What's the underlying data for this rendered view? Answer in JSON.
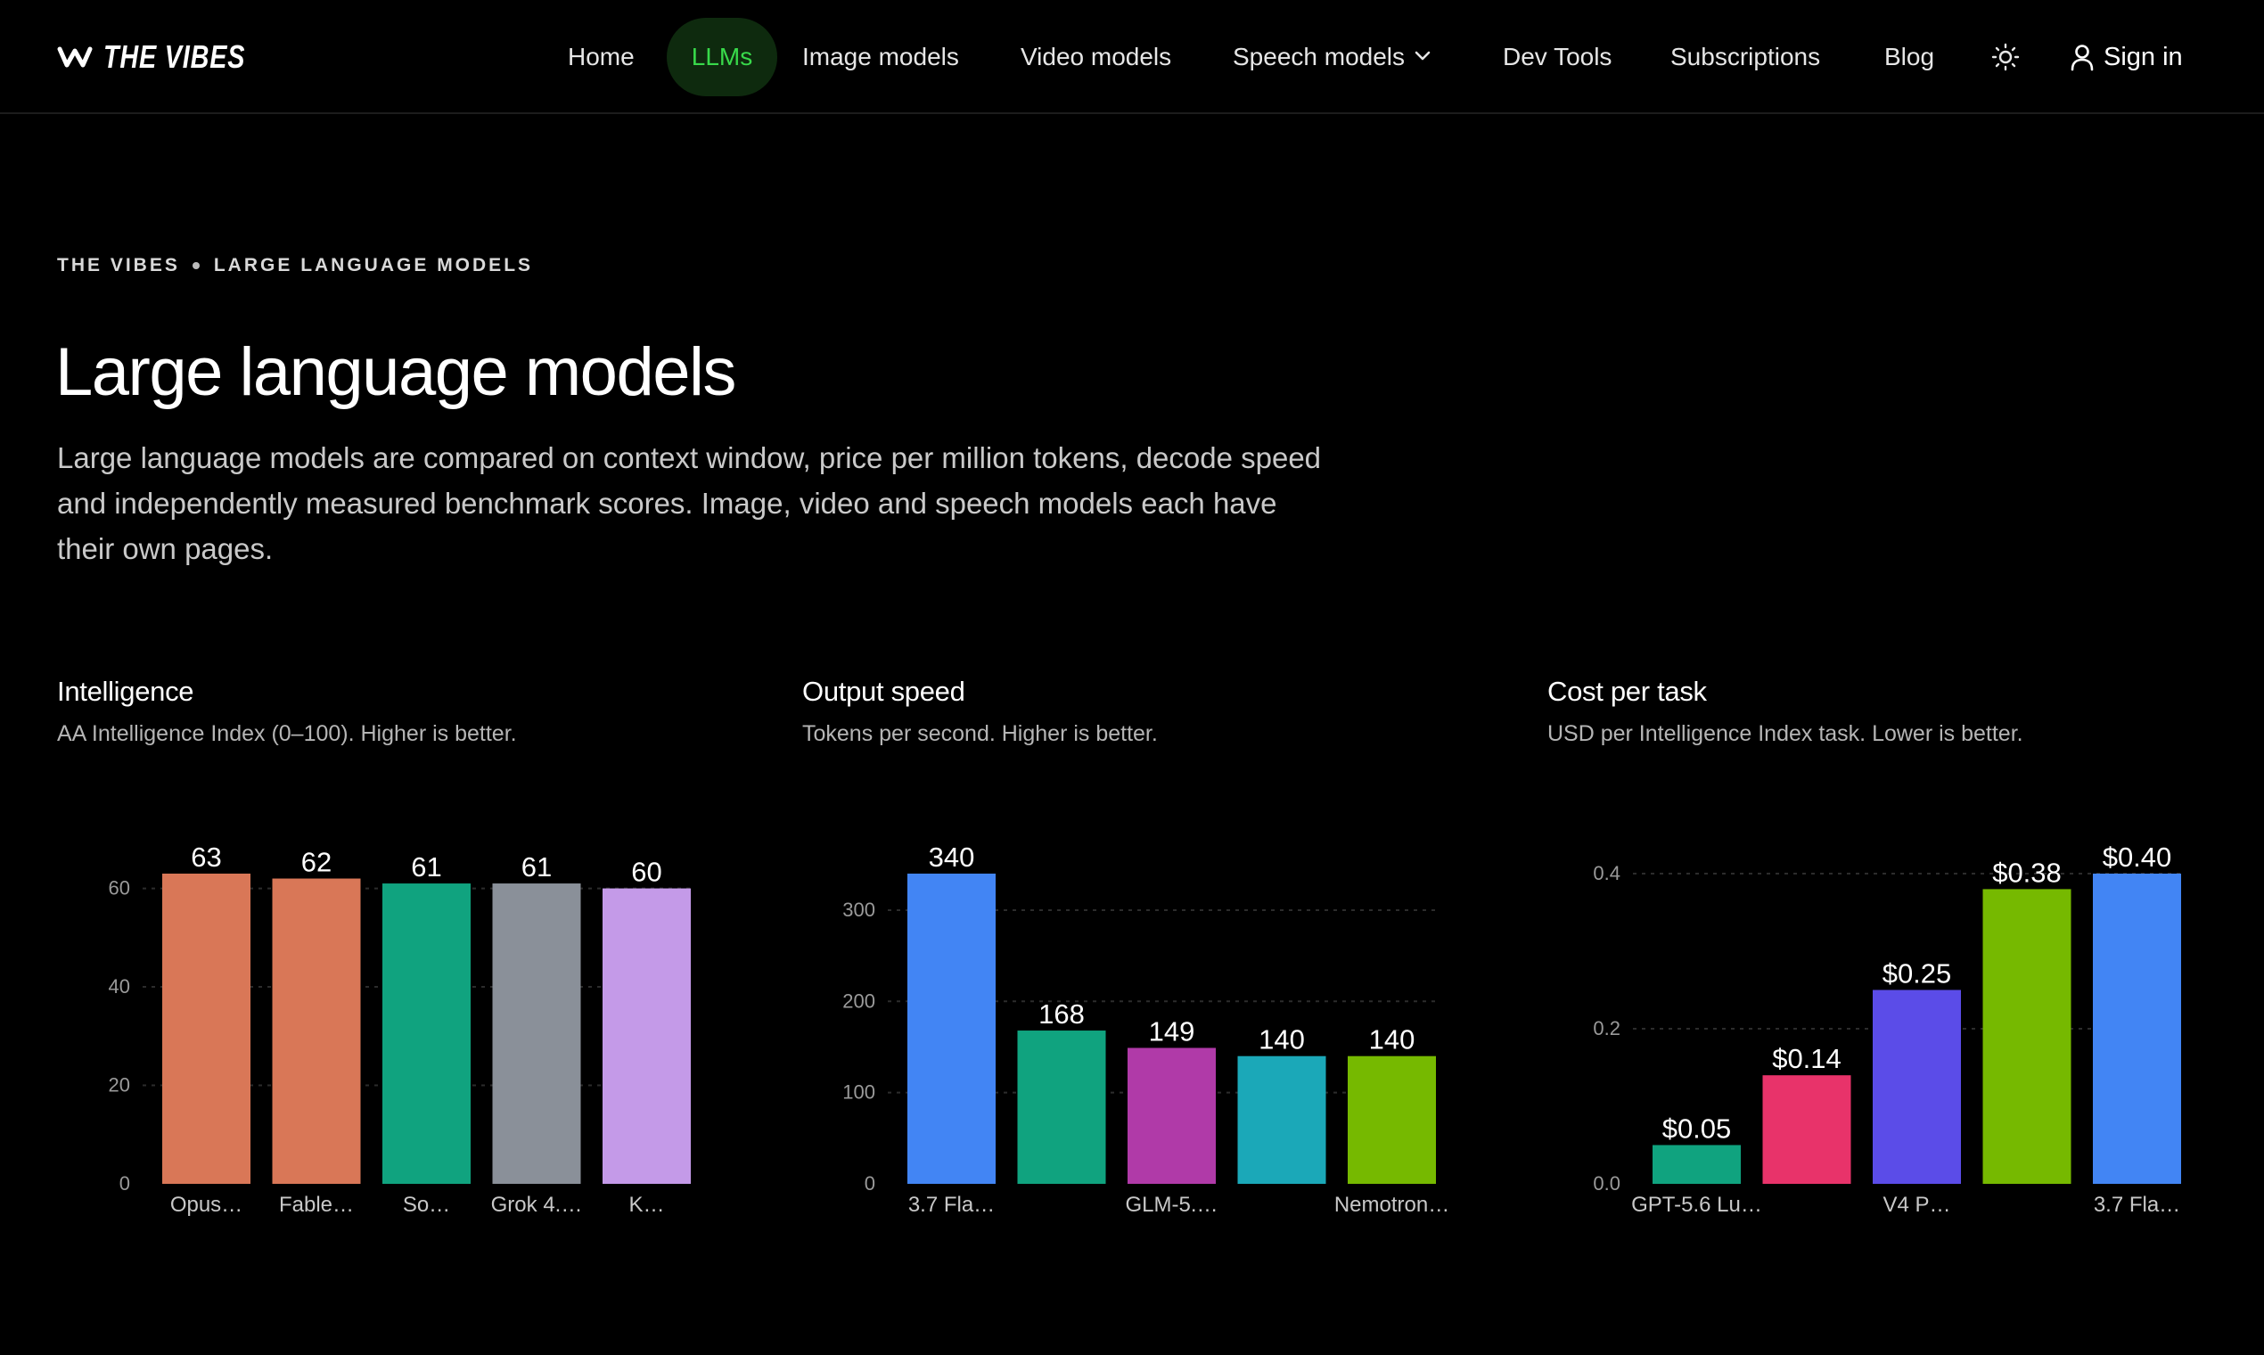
{
  "brand": {
    "name": "THE VIBES",
    "logo_icon": "vibes-wave-logo"
  },
  "nav": {
    "items": [
      {
        "label": "Home",
        "active": false
      },
      {
        "label": "LLMs",
        "active": true
      },
      {
        "label": "Image models",
        "active": false
      },
      {
        "label": "Video models",
        "active": false
      },
      {
        "label": "Speech models",
        "active": false,
        "dropdown": true
      },
      {
        "label": "Dev Tools",
        "active": false
      },
      {
        "label": "Subscriptions",
        "active": false
      },
      {
        "label": "Blog",
        "active": false
      }
    ],
    "theme_icon": "sun-icon",
    "signin_icon": "user-icon",
    "signin_label": "Sign in",
    "active_color": "#38d94a"
  },
  "breadcrumb": {
    "root": "THE VIBES",
    "current": "LARGE LANGUAGE MODELS"
  },
  "page": {
    "title": "Large language models",
    "intro": "Large language models are compared on context window, price per million tokens, decode speed and independently measured benchmark scores. Image, video and speech models each have their own pages."
  },
  "panels": [
    {
      "title": "Intelligence",
      "subtitle": "AA Intelligence Index (0–100). Higher is better."
    },
    {
      "title": "Output speed",
      "subtitle": "Tokens per second. Higher is better."
    },
    {
      "title": "Cost per task",
      "subtitle": "USD per Intelligence Index task. Lower is better."
    }
  ],
  "chart_data": [
    {
      "type": "bar",
      "title": "Intelligence",
      "categories": [
        "Opus…",
        "Fable…",
        "So…",
        "Grok 4.…",
        "K…"
      ],
      "values": [
        63,
        62,
        61,
        61,
        60
      ],
      "value_labels": [
        "63",
        "62",
        "61",
        "61",
        "60"
      ],
      "colors": [
        "#d97757",
        "#d97757",
        "#10a37f",
        "#8a9099",
        "#c49ae8"
      ],
      "ylim": [
        0,
        63
      ],
      "yticks": [
        0,
        20,
        40,
        60
      ],
      "ytick_labels": [
        "0",
        "20",
        "40",
        "60"
      ],
      "grid": true,
      "xlabel": "",
      "ylabel": ""
    },
    {
      "type": "bar",
      "title": "Output speed",
      "categories": [
        "3.7 Fla…",
        "",
        "GLM-5.…",
        "",
        "Nemotron…"
      ],
      "values": [
        340,
        168,
        149,
        140,
        140
      ],
      "value_labels": [
        "340",
        "168",
        "149",
        "140",
        "140"
      ],
      "colors": [
        "#4285f4",
        "#10a37f",
        "#b03aa8",
        "#1ba8b8",
        "#76b900"
      ],
      "ylim": [
        0,
        340
      ],
      "yticks": [
        0,
        100,
        200,
        300
      ],
      "ytick_labels": [
        "0",
        "100",
        "200",
        "300"
      ],
      "grid": true,
      "xlabel": "",
      "ylabel": ""
    },
    {
      "type": "bar",
      "title": "Cost per task",
      "categories": [
        "GPT-5.6 Lu…",
        "",
        "V4 P…",
        "",
        "3.7 Fla…"
      ],
      "values": [
        0.05,
        0.14,
        0.25,
        0.38,
        0.4
      ],
      "value_labels": [
        "$0.05",
        "$0.14",
        "$0.25",
        "$0.38",
        "$0.40"
      ],
      "colors": [
        "#10a37f",
        "#e8336a",
        "#5b4ce8",
        "#76b900",
        "#4285f4"
      ],
      "ylim": [
        0,
        0.4
      ],
      "yticks": [
        0,
        0.2,
        0.4
      ],
      "ytick_labels": [
        "0.0",
        "0.2",
        "0.4"
      ],
      "grid": true,
      "xlabel": "",
      "ylabel": ""
    }
  ]
}
